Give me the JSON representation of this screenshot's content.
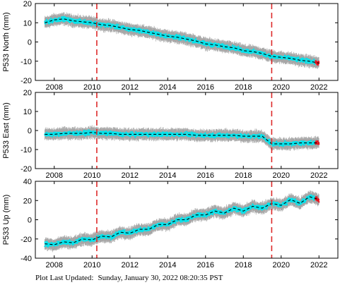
{
  "footer": {
    "label": "Plot Last Updated:",
    "timestamp": "Sunday, January 30, 2022 08:20:35 PST"
  },
  "colors": {
    "errorbars": "#a6a6a6",
    "points": "#00e5ee",
    "recent_points": "#e8141e",
    "model": "#000000",
    "event_lines": "#dd2a2a"
  },
  "chart_data": [
    {
      "type": "scatter",
      "title": "",
      "xlabel": "",
      "ylabel": "P533 North (mm)",
      "xlim": [
        2007.0,
        2023.0
      ],
      "ylim": [
        -20,
        20
      ],
      "xticks": [
        2008,
        2010,
        2012,
        2014,
        2016,
        2018,
        2020,
        2022
      ],
      "yticks": [
        -20,
        -10,
        0,
        10,
        20
      ],
      "event_lines": [
        2010.25,
        2019.5
      ],
      "series": [
        {
          "x": [
            2007.5,
            2008.0,
            2008.5,
            2009.0,
            2009.5,
            2010.0,
            2010.5,
            2011.0,
            2011.5,
            2012.0,
            2012.5,
            2013.0,
            2013.5,
            2014.0,
            2014.5,
            2015.0,
            2015.5,
            2016.0,
            2016.5,
            2017.0,
            2017.5,
            2018.0,
            2018.5,
            2019.0,
            2019.5,
            2020.0,
            2020.5,
            2021.0,
            2021.5,
            2022.0
          ],
          "y": [
            10,
            11.5,
            12,
            11,
            10.5,
            10,
            9,
            8.5,
            7.5,
            6.5,
            6,
            5,
            4,
            3,
            2.5,
            1.5,
            0.5,
            -1,
            -1.5,
            -2.5,
            -3,
            -4.5,
            -5,
            -6,
            -7.5,
            -8,
            -8.5,
            -9.5,
            -10,
            -11
          ]
        }
      ]
    },
    {
      "type": "scatter",
      "title": "",
      "xlabel": "",
      "ylabel": "P533 East (mm)",
      "xlim": [
        2007.0,
        2023.0
      ],
      "ylim": [
        -20,
        20
      ],
      "xticks": [
        2008,
        2010,
        2012,
        2014,
        2016,
        2018,
        2020,
        2022
      ],
      "yticks": [
        -20,
        -10,
        0,
        10,
        20
      ],
      "event_lines": [
        2010.25,
        2019.5
      ],
      "series": [
        {
          "x": [
            2007.5,
            2008.0,
            2008.5,
            2009.0,
            2009.5,
            2010.0,
            2010.5,
            2011.0,
            2011.5,
            2012.0,
            2012.5,
            2013.0,
            2013.5,
            2014.0,
            2014.5,
            2015.0,
            2015.5,
            2016.0,
            2016.5,
            2017.0,
            2017.5,
            2018.0,
            2018.5,
            2019.0,
            2019.5,
            2020.0,
            2020.5,
            2021.0,
            2021.5,
            2022.0
          ],
          "y": [
            -2,
            -2,
            -1.5,
            -1.5,
            -1.5,
            -1,
            -1.5,
            -1.5,
            -2,
            -2,
            -2,
            -2,
            -2,
            -2,
            -2,
            -2,
            -2.5,
            -2.5,
            -2.5,
            -2.5,
            -2.5,
            -3,
            -3,
            -3,
            -7,
            -7,
            -7,
            -6.5,
            -6.5,
            -6.5
          ]
        }
      ]
    },
    {
      "type": "scatter",
      "title": "",
      "xlabel": "",
      "ylabel": "P533 Up (mm)",
      "xlim": [
        2007.0,
        2023.0
      ],
      "ylim": [
        -40,
        40
      ],
      "xticks": [
        2008,
        2010,
        2012,
        2014,
        2016,
        2018,
        2020,
        2022
      ],
      "yticks": [
        -40,
        -20,
        0,
        20,
        40
      ],
      "event_lines": [
        2010.25,
        2019.5
      ],
      "series": [
        {
          "x": [
            2007.5,
            2008.0,
            2008.5,
            2009.0,
            2009.5,
            2010.0,
            2010.5,
            2011.0,
            2011.5,
            2012.0,
            2012.5,
            2013.0,
            2013.5,
            2014.0,
            2014.5,
            2015.0,
            2015.5,
            2016.0,
            2016.5,
            2017.0,
            2017.5,
            2018.0,
            2018.5,
            2019.0,
            2019.5,
            2020.0,
            2020.5,
            2021.0,
            2021.5,
            2022.0
          ],
          "y": [
            -25,
            -26,
            -23,
            -24,
            -20,
            -21,
            -17,
            -18,
            -13,
            -14,
            -10,
            -10,
            -5,
            -5,
            0,
            0,
            5,
            5,
            9,
            7,
            12,
            9,
            14,
            12,
            17,
            15,
            21,
            17,
            24,
            21
          ]
        }
      ]
    }
  ]
}
